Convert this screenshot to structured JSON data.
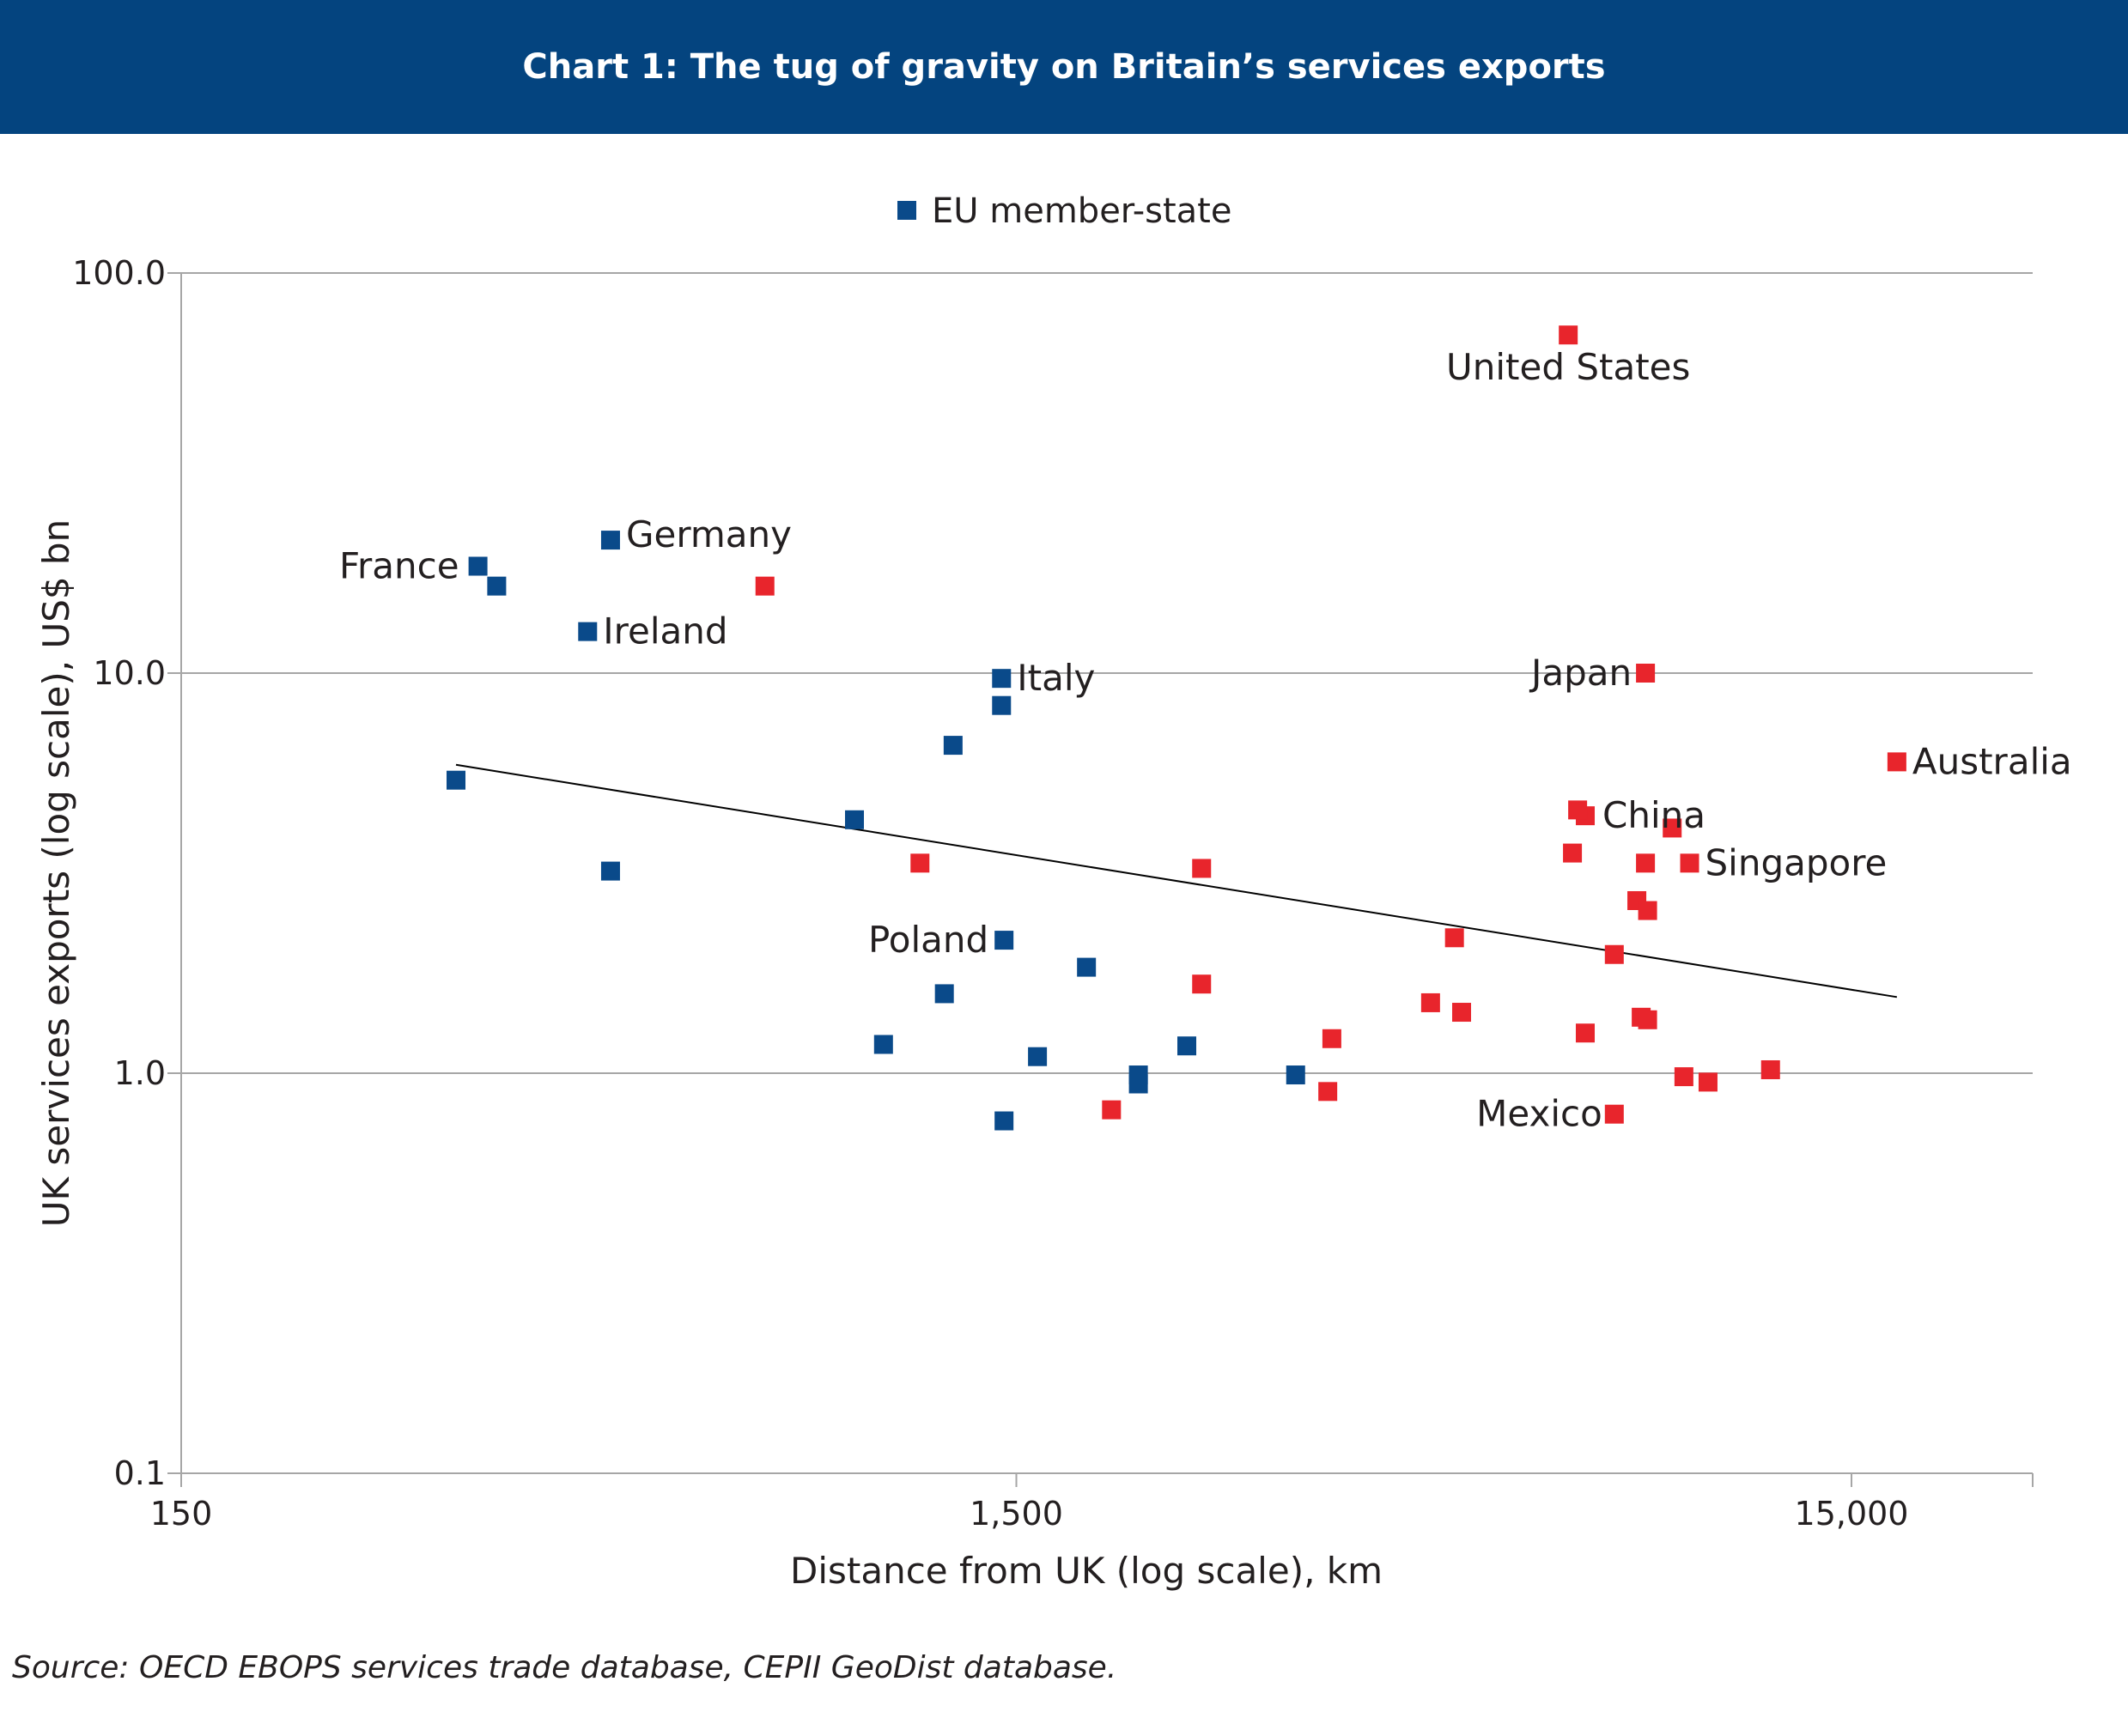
{
  "header": {
    "title": "Chart 1: The tug of gravity on Britain’s services exports"
  },
  "source": "Source:  OECD EBOPS services trade database, CEPII GeoDist database.",
  "colors": {
    "header": "#04447f",
    "eu": "#0a4a8a",
    "non_eu": "#e8252c",
    "grid": "#a6a6a6",
    "trend": "#000000"
  },
  "chart_data": {
    "type": "scatter",
    "title": "Chart 1: The tug of gravity on Britain’s services exports",
    "xlabel": "Distance from UK (log scale), km",
    "ylabel": "UK services exports (log scale), US$ bn",
    "x_scale": "log",
    "y_scale": "log",
    "xlim": [
      150,
      21000
    ],
    "ylim": [
      0.1,
      100
    ],
    "x_ticks": [
      150,
      1500,
      15000
    ],
    "x_tick_labels": [
      "150",
      "1,500",
      "15,000"
    ],
    "y_ticks": [
      0.1,
      1,
      10,
      100
    ],
    "y_tick_labels": [
      "0.1",
      "1.0",
      "10.0",
      "100.0"
    ],
    "grid": "horizontal",
    "legend": {
      "position": "top-center",
      "entries": [
        "EU member-state"
      ]
    },
    "trendline": {
      "x": [
        320,
        17000
      ],
      "y": [
        5.9,
        1.55
      ]
    },
    "series": [
      {
        "name": "EU member-state",
        "points": [
          {
            "x": 340,
            "y": 18.5,
            "label": "France"
          },
          {
            "x": 358,
            "y": 16.5,
            "label": ""
          },
          {
            "x": 320,
            "y": 5.4,
            "label": ""
          },
          {
            "x": 460,
            "y": 12.7,
            "label": "Ireland"
          },
          {
            "x": 490,
            "y": 21.5,
            "label": "Germany"
          },
          {
            "x": 490,
            "y": 3.2,
            "label": ""
          },
          {
            "x": 1440,
            "y": 9.7,
            "label": "Italy"
          },
          {
            "x": 1440,
            "y": 8.3,
            "label": ""
          },
          {
            "x": 1450,
            "y": 2.15,
            "label": "Poland"
          },
          {
            "x": 1260,
            "y": 6.6,
            "label": ""
          },
          {
            "x": 960,
            "y": 4.3,
            "label": ""
          },
          {
            "x": 1230,
            "y": 1.58,
            "label": ""
          },
          {
            "x": 1040,
            "y": 1.18,
            "label": ""
          },
          {
            "x": 1450,
            "y": 0.76,
            "label": ""
          },
          {
            "x": 1590,
            "y": 1.1,
            "label": ""
          },
          {
            "x": 1820,
            "y": 1.84,
            "label": ""
          },
          {
            "x": 2100,
            "y": 0.99,
            "label": ""
          },
          {
            "x": 2100,
            "y": 0.94,
            "label": ""
          },
          {
            "x": 2400,
            "y": 1.17,
            "label": ""
          },
          {
            "x": 3240,
            "y": 0.99,
            "label": ""
          }
        ]
      },
      {
        "name": "",
        "points": [
          {
            "x": 6870,
            "y": 70,
            "label": "United States"
          },
          {
            "x": 8500,
            "y": 10.0,
            "label": "Japan"
          },
          {
            "x": 17000,
            "y": 6.0,
            "label": "Australia"
          },
          {
            "x": 7200,
            "y": 4.4,
            "label": "China"
          },
          {
            "x": 9600,
            "y": 3.35,
            "label": "Singapore"
          },
          {
            "x": 7800,
            "y": 0.79,
            "label": "Mexico"
          },
          {
            "x": 750,
            "y": 16.5,
            "label": ""
          },
          {
            "x": 1150,
            "y": 3.35,
            "label": ""
          },
          {
            "x": 2500,
            "y": 3.25,
            "label": ""
          },
          {
            "x": 2500,
            "y": 1.67,
            "label": ""
          },
          {
            "x": 1950,
            "y": 0.81,
            "label": ""
          },
          {
            "x": 3580,
            "y": 1.22,
            "label": ""
          },
          {
            "x": 3540,
            "y": 0.9,
            "label": ""
          },
          {
            "x": 4700,
            "y": 1.5,
            "label": ""
          },
          {
            "x": 5020,
            "y": 2.18,
            "label": ""
          },
          {
            "x": 5120,
            "y": 1.42,
            "label": ""
          },
          {
            "x": 6950,
            "y": 3.55,
            "label": ""
          },
          {
            "x": 7050,
            "y": 4.55,
            "label": ""
          },
          {
            "x": 7200,
            "y": 1.26,
            "label": ""
          },
          {
            "x": 8300,
            "y": 2.7,
            "label": ""
          },
          {
            "x": 9150,
            "y": 4.1,
            "label": ""
          },
          {
            "x": 8500,
            "y": 3.35,
            "label": ""
          },
          {
            "x": 8550,
            "y": 2.55,
            "label": ""
          },
          {
            "x": 7800,
            "y": 1.98,
            "label": ""
          },
          {
            "x": 8400,
            "y": 1.38,
            "label": ""
          },
          {
            "x": 8550,
            "y": 1.36,
            "label": ""
          },
          {
            "x": 9450,
            "y": 0.98,
            "label": ""
          },
          {
            "x": 10100,
            "y": 0.95,
            "label": ""
          },
          {
            "x": 12000,
            "y": 1.02,
            "label": ""
          }
        ]
      }
    ]
  }
}
